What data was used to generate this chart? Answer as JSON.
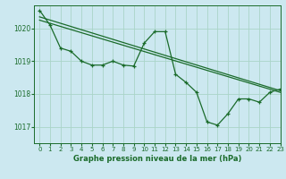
{
  "title": "Graphe pression niveau de la mer (hPa)",
  "background_color": "#cce8f0",
  "plot_bg_color": "#cce8f0",
  "grid_color": "#aad4c8",
  "line_color": "#1a6b2a",
  "xlim": [
    -0.5,
    23
  ],
  "ylim": [
    1016.5,
    1020.7
  ],
  "xticks": [
    0,
    1,
    2,
    3,
    4,
    5,
    6,
    7,
    8,
    9,
    10,
    11,
    12,
    13,
    14,
    15,
    16,
    17,
    18,
    19,
    20,
    21,
    22,
    23
  ],
  "yticks": [
    1017,
    1018,
    1019,
    1020
  ],
  "trend1_x": [
    0,
    23
  ],
  "trend1_y": [
    1020.35,
    1018.1
  ],
  "trend2_x": [
    0,
    23
  ],
  "trend2_y": [
    1020.25,
    1018.05
  ],
  "detail_x": [
    0,
    1,
    2,
    3,
    4,
    5,
    6,
    7,
    8,
    9,
    10,
    11,
    12,
    13,
    14,
    15,
    16,
    17,
    18,
    19,
    20,
    21,
    22,
    23
  ],
  "detail_y": [
    1020.55,
    1020.1,
    1019.4,
    1019.3,
    1019.0,
    1018.88,
    1018.88,
    1019.0,
    1018.88,
    1018.85,
    1019.55,
    1019.9,
    1019.9,
    1018.6,
    1018.35,
    1018.05,
    1017.15,
    1017.05,
    1017.4,
    1017.85,
    1017.85,
    1017.75,
    1018.05,
    1018.15
  ]
}
